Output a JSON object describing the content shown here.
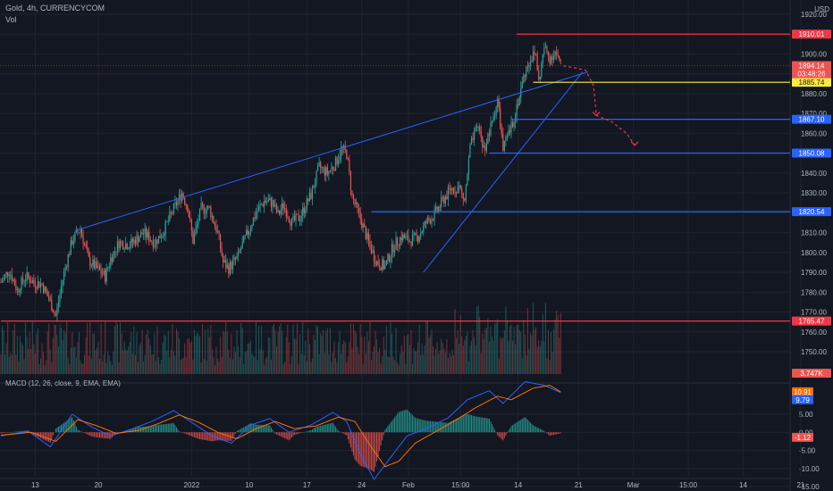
{
  "header": {
    "symbol": "Gold, 4h, CURRENCYCOM",
    "vol_label": "Vol",
    "currency": "USD",
    "macd_label": "MACD (12, 26, close, 9, EMA, EMA)"
  },
  "colors": {
    "bg": "#131722",
    "up": "#26a69a",
    "down": "#ef5350",
    "grid": "#1f2330",
    "blue_line": "#2962ff",
    "red_line": "#f23645",
    "yellow_line": "#ffeb3b",
    "macd_line": "#2962ff",
    "signal_line": "#ff6d00"
  },
  "chart_data": [
    {
      "type": "candlestick",
      "title": "Gold, 4h, CURRENCYCOM",
      "y_axis": {
        "ticks": [
          1920,
          1910,
          1900,
          1890,
          1880,
          1870,
          1860,
          1850,
          1840,
          1830,
          1820,
          1810,
          1800,
          1790,
          1780,
          1770,
          1760,
          1750
        ],
        "tick_labels": [
          "1920.00",
          "1910.00",
          "1900.00",
          "1890.00",
          "1880.00",
          "1870.00",
          "1860.00",
          "1850.00",
          "1840.00",
          "1830.00",
          "1820.00",
          "1810.00",
          "1800.00",
          "1790.00",
          "1780.00",
          "1770.00",
          "1760.00",
          "1750.00"
        ],
        "range": [
          1743,
          1924
        ]
      },
      "x_axis": {
        "tick_labels": [
          "13",
          "20",
          "2022",
          "10",
          "17",
          "24",
          "Feb",
          "15:00",
          "14",
          "21",
          "Mar",
          "15:00",
          "14",
          "21"
        ]
      },
      "bars_per_day": 6,
      "path": [
        [
          0,
          1785
        ],
        [
          6,
          1791
        ],
        [
          12,
          1781
        ],
        [
          18,
          1788
        ],
        [
          24,
          1785
        ],
        [
          30,
          1784
        ],
        [
          36,
          1775
        ],
        [
          40,
          1768
        ],
        [
          46,
          1790
        ],
        [
          52,
          1806
        ],
        [
          58,
          1812
        ],
        [
          64,
          1796
        ],
        [
          70,
          1792
        ],
        [
          76,
          1788
        ],
        [
          80,
          1797
        ],
        [
          86,
          1805
        ],
        [
          94,
          1804
        ],
        [
          104,
          1810
        ],
        [
          112,
          1805
        ],
        [
          118,
          1810
        ],
        [
          126,
          1822
        ],
        [
          132,
          1830
        ],
        [
          136,
          1823
        ],
        [
          140,
          1806
        ],
        [
          146,
          1822
        ],
        [
          152,
          1822
        ],
        [
          158,
          1810
        ],
        [
          162,
          1795
        ],
        [
          166,
          1792
        ],
        [
          172,
          1797
        ],
        [
          178,
          1807
        ],
        [
          186,
          1820
        ],
        [
          192,
          1826
        ],
        [
          198,
          1825
        ],
        [
          202,
          1819
        ],
        [
          206,
          1824
        ],
        [
          212,
          1815
        ],
        [
          218,
          1818
        ],
        [
          226,
          1829
        ],
        [
          232,
          1843
        ],
        [
          238,
          1840
        ],
        [
          244,
          1845
        ],
        [
          248,
          1852
        ],
        [
          252,
          1850
        ],
        [
          256,
          1828
        ],
        [
          262,
          1817
        ],
        [
          268,
          1805
        ],
        [
          274,
          1795
        ],
        [
          280,
          1793
        ],
        [
          286,
          1803
        ],
        [
          292,
          1808
        ],
        [
          298,
          1806
        ],
        [
          304,
          1808
        ],
        [
          310,
          1815
        ],
        [
          316,
          1819
        ],
        [
          322,
          1826
        ],
        [
          328,
          1832
        ],
        [
          334,
          1833
        ],
        [
          338,
          1826
        ],
        [
          342,
          1853
        ],
        [
          348,
          1864
        ],
        [
          352,
          1852
        ],
        [
          356,
          1860
        ],
        [
          362,
          1877
        ],
        [
          366,
          1852
        ],
        [
          372,
          1863
        ],
        [
          378,
          1879
        ],
        [
          382,
          1891
        ],
        [
          386,
          1898
        ],
        [
          390,
          1900
        ],
        [
          392,
          1886
        ],
        [
          396,
          1903
        ],
        [
          400,
          1898
        ],
        [
          404,
          1901
        ],
        [
          408,
          1894
        ]
      ],
      "volume_axis_label": "3.747K",
      "price_levels": [
        {
          "label": "1910.01",
          "value": 1910.01,
          "color": "#f23645"
        },
        {
          "label": "1885.74",
          "value": 1885.74,
          "color": "#ffeb3b"
        },
        {
          "label": "1867.10",
          "value": 1867.1,
          "color": "#2962ff"
        },
        {
          "label": "1850.08",
          "value": 1850.08,
          "color": "#2962ff"
        },
        {
          "label": "1820.54",
          "value": 1820.54,
          "color": "#2962ff"
        },
        {
          "label": "1765.47",
          "value": 1765.47,
          "color": "#f23645"
        }
      ],
      "current_price": {
        "label": "1894.14",
        "countdown": "03:48:26",
        "value": 1894.14
      },
      "trendlines": [
        {
          "from": [
            54,
            1811
          ],
          "to": [
            428,
            1891
          ]
        },
        {
          "from": [
            308,
            1790
          ],
          "to": [
            424,
            1891
          ]
        }
      ],
      "projection_arrow": [
        [
          410,
          1894
        ],
        [
          426,
          1892
        ],
        [
          432,
          1884
        ],
        [
          434,
          1869
        ],
        [
          445,
          1866
        ],
        [
          456,
          1860
        ],
        [
          462,
          1854
        ]
      ]
    },
    {
      "type": "line",
      "title": "MACD (12, 26, close, 9, EMA, EMA)",
      "y_axis": {
        "ticks": [
          5,
          0,
          -5,
          -10,
          -15
        ],
        "tick_labels": [
          "5.00",
          "0.00",
          "-5.00",
          "-10.00",
          "-15.00"
        ],
        "range": [
          -16.5,
          14.5
        ]
      },
      "series": [
        {
          "name": "MACD",
          "value_label": "9.79",
          "color": "#2962ff",
          "keypoints": [
            [
              0,
              -1
            ],
            [
              20,
              0.3
            ],
            [
              36,
              -4
            ],
            [
              52,
              5
            ],
            [
              66,
              1.5
            ],
            [
              80,
              -1
            ],
            [
              96,
              1
            ],
            [
              110,
              3
            ],
            [
              126,
              6
            ],
            [
              140,
              2.5
            ],
            [
              154,
              -1
            ],
            [
              168,
              -3
            ],
            [
              182,
              2
            ],
            [
              196,
              3.8
            ],
            [
              210,
              0
            ],
            [
              226,
              2
            ],
            [
              242,
              5.5
            ],
            [
              252,
              3
            ],
            [
              262,
              -6
            ],
            [
              272,
              -13
            ],
            [
              282,
              -8
            ],
            [
              296,
              -1
            ],
            [
              310,
              1
            ],
            [
              326,
              4
            ],
            [
              340,
              9
            ],
            [
              356,
              11.5
            ],
            [
              366,
              8
            ],
            [
              382,
              14
            ],
            [
              396,
              13
            ],
            [
              408,
              11
            ]
          ]
        },
        {
          "name": "Signal",
          "value_label": "10.91",
          "color": "#ff6d00",
          "keypoints": [
            [
              0,
              -0.8
            ],
            [
              22,
              0
            ],
            [
              40,
              -2.5
            ],
            [
              56,
              3.5
            ],
            [
              70,
              1.8
            ],
            [
              84,
              -0.3
            ],
            [
              100,
              0.5
            ],
            [
              114,
              2.3
            ],
            [
              130,
              4.8
            ],
            [
              144,
              2.8
            ],
            [
              158,
              0
            ],
            [
              172,
              -1.8
            ],
            [
              186,
              1
            ],
            [
              200,
              3
            ],
            [
              214,
              1
            ],
            [
              230,
              1.8
            ],
            [
              246,
              4.2
            ],
            [
              258,
              3
            ],
            [
              268,
              -3
            ],
            [
              280,
              -9.5
            ],
            [
              290,
              -8
            ],
            [
              302,
              -3
            ],
            [
              316,
              0
            ],
            [
              330,
              3
            ],
            [
              346,
              6.8
            ],
            [
              362,
              10
            ],
            [
              372,
              9
            ],
            [
              388,
              12.2
            ],
            [
              400,
              13
            ],
            [
              408,
              11.2
            ]
          ]
        }
      ],
      "histogram_label": "-1.12"
    }
  ]
}
